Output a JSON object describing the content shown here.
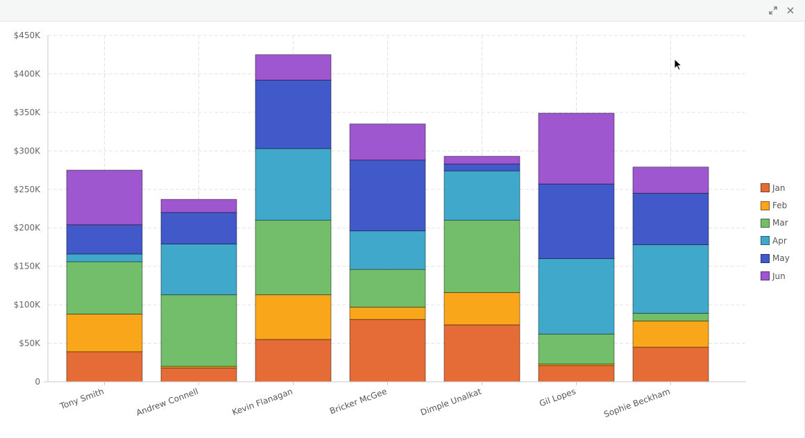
{
  "window": {
    "expand_icon": "expand-arrows-icon",
    "close_icon": "close-icon"
  },
  "chart_data": {
    "type": "bar",
    "stacked": true,
    "categories": [
      "Tony Smith",
      "Andrew Connell",
      "Kevin Flanagan",
      "Bricker McGee",
      "Dimple Unalkat",
      "Gil Lopes",
      "Sophie Beckham"
    ],
    "series": [
      {
        "name": "Jan",
        "color": "#e66c37",
        "values": [
          39000,
          18000,
          55000,
          81000,
          74000,
          21000,
          45000
        ]
      },
      {
        "name": "Feb",
        "color": "#f9a61a",
        "values": [
          49000,
          2000,
          58000,
          16000,
          42000,
          2000,
          34000
        ]
      },
      {
        "name": "Mar",
        "color": "#73be6a",
        "values": [
          68000,
          93000,
          97000,
          49000,
          94000,
          39000,
          10000
        ]
      },
      {
        "name": "Apr",
        "color": "#40a9cb",
        "values": [
          10000,
          66000,
          93000,
          50000,
          64000,
          98000,
          89000
        ]
      },
      {
        "name": "May",
        "color": "#4159c9",
        "values": [
          38000,
          41000,
          89000,
          92000,
          9000,
          97000,
          67000
        ]
      },
      {
        "name": "Jun",
        "color": "#9f57cf",
        "values": [
          71000,
          17000,
          33000,
          47000,
          10000,
          92000,
          34000
        ]
      }
    ],
    "ylim": [
      0,
      450000
    ],
    "y_ticks": [
      {
        "value": 0,
        "label": "0"
      },
      {
        "value": 50000,
        "label": "$50K"
      },
      {
        "value": 100000,
        "label": "$100K"
      },
      {
        "value": 150000,
        "label": "$150K"
      },
      {
        "value": 200000,
        "label": "$200K"
      },
      {
        "value": 250000,
        "label": "$250K"
      },
      {
        "value": 300000,
        "label": "$300K"
      },
      {
        "value": 350000,
        "label": "$350K"
      },
      {
        "value": 400000,
        "label": "$400K"
      },
      {
        "value": 450000,
        "label": "$450K"
      }
    ],
    "grid": true,
    "legend_position": "right",
    "xlabel": "",
    "ylabel": ""
  }
}
